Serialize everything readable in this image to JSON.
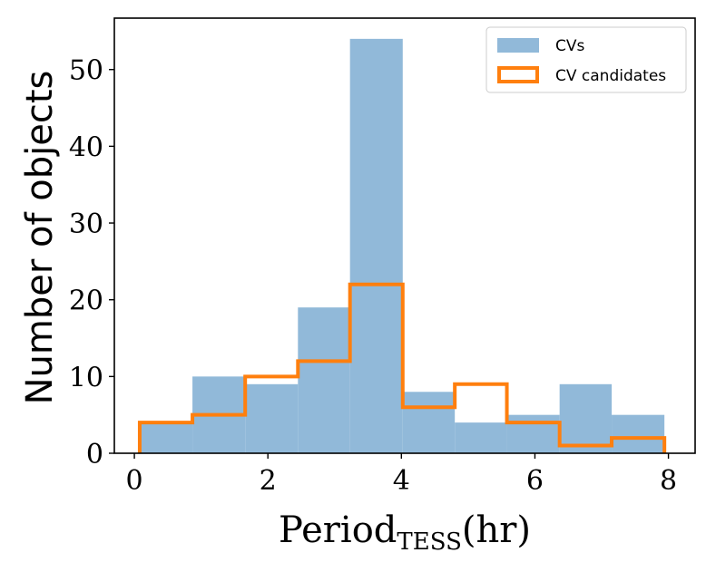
{
  "chart_data": {
    "type": "bar",
    "xlabel": "Period",
    "xlabel_subscript": "TESS",
    "xlabel_unit": "(hr)",
    "ylabel": "Number of objects",
    "xlim": [
      -0.3,
      8.4
    ],
    "ylim": [
      0,
      56.7
    ],
    "xticks": [
      "0",
      "2",
      "4",
      "6",
      "8"
    ],
    "yticks": [
      "0",
      "10",
      "20",
      "30",
      "40",
      "50"
    ],
    "legend_position": "top-right",
    "series": [
      {
        "name": "CVs",
        "style": "filled",
        "color": "#91b9d9",
        "bin_edges": [
          0.08,
          0.87,
          1.66,
          2.45,
          3.23,
          4.02,
          4.8,
          5.58,
          6.37,
          7.15,
          7.94
        ],
        "values": [
          4,
          10,
          9,
          19,
          54,
          8,
          4,
          5,
          9,
          5
        ]
      },
      {
        "name": "CV candidates",
        "style": "step",
        "color": "#ff7f0e",
        "bin_edges": [
          0.08,
          0.87,
          1.66,
          2.45,
          3.23,
          4.02,
          4.8,
          5.58,
          6.37,
          7.15,
          7.94
        ],
        "values": [
          4,
          5,
          10,
          12,
          22,
          6,
          9,
          4,
          1,
          2
        ]
      }
    ]
  }
}
